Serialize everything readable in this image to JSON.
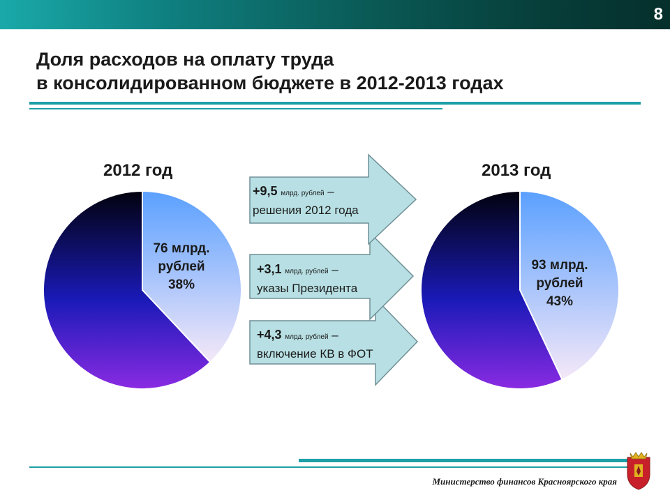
{
  "page": {
    "number": "8"
  },
  "title": {
    "line1": "Доля расходов на оплату труда",
    "line2": "в консолидированном бюджете в 2012-2013 годах"
  },
  "chart_data": [
    {
      "type": "pie",
      "title": "2012 год",
      "slices": [
        {
          "name": "",
          "value": 38,
          "label_amount": "76 млрд.",
          "label_unit": "рублей",
          "label_pct": "38%",
          "color_top": "#5aa0ff",
          "color_bottom": "#f5e8f8"
        },
        {
          "name": "",
          "value": 62,
          "color_top": "#000010",
          "color_bottom": "#8a2be2"
        }
      ]
    },
    {
      "type": "pie",
      "title": "2013 год",
      "slices": [
        {
          "name": "",
          "value": 43,
          "label_amount": "93 млрд.",
          "label_unit": "рублей",
          "label_pct": "43%",
          "color_top": "#5aa0ff",
          "color_bottom": "#f5e8f8"
        },
        {
          "name": "",
          "value": 57,
          "color_top": "#000010",
          "color_bottom": "#8a2be2"
        }
      ]
    }
  ],
  "arrows": [
    {
      "amount": "+9,5",
      "unit": "млрд. рублей",
      "dash": "–",
      "desc": "решения 2012 года"
    },
    {
      "amount": "+3,1",
      "unit": "млрд. рублей",
      "dash": "–",
      "desc": "указы Президента"
    },
    {
      "amount": "+4,3",
      "unit": "млрд. рублей",
      "dash": "–",
      "desc": "включение КВ в ФОТ"
    }
  ],
  "footer": {
    "org": "Министерство финансов Красноярского края"
  },
  "colors": {
    "accent": "#1d9fa7",
    "arrow_fill": "#b8e0e4",
    "arrow_stroke": "#6f8f95"
  }
}
